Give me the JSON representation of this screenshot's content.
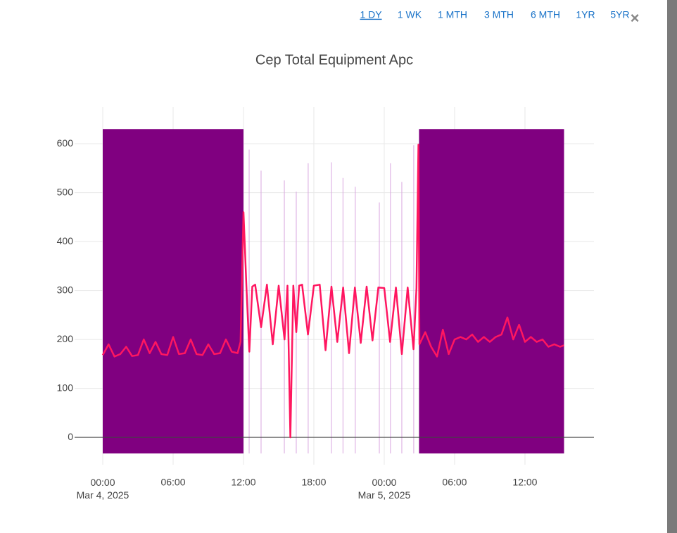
{
  "range_buttons": [
    "1 DY",
    "1 WK",
    "1 MTH",
    "3 MTH",
    "6 MTH",
    "1YR",
    "5YR"
  ],
  "close": "×",
  "chart_data": {
    "type": "line",
    "title": "Cep Total Equipment Apc",
    "color": "#ff1660",
    "grid": true,
    "zeroline": true,
    "xlim": [
      "2025-03-03T21:36",
      "2025-03-05T17:53"
    ],
    "xticks": [
      {
        "value": "2025-03-04T00:00",
        "label": "00:00\nMar 4, 2025"
      },
      {
        "value": "2025-03-04T06:00",
        "label": "06:00"
      },
      {
        "value": "2025-03-04T12:00",
        "label": "12:00"
      },
      {
        "value": "2025-03-04T18:00",
        "label": "18:00"
      },
      {
        "value": "2025-03-05T00:00",
        "label": "00:00\nMar 5, 2025"
      },
      {
        "value": "2025-03-05T06:00",
        "label": "06:00"
      },
      {
        "value": "2025-03-05T12:00",
        "label": "12:00"
      }
    ],
    "ylim": [
      -56,
      675
    ],
    "yticks": [
      0,
      100,
      200,
      300,
      400,
      500,
      600
    ],
    "shaded_regions": [
      {
        "x0": "2025-03-04T00:00",
        "x1": "2025-03-04T12:00",
        "y0": -33,
        "y1": 630,
        "color": "#800080"
      },
      {
        "x0": "2025-03-05T02:58",
        "x1": "2025-03-05T15:20",
        "y0": -33,
        "y1": 630,
        "color": "#800080"
      }
    ],
    "spikes": {
      "color": "#d9a6e0",
      "base": -33,
      "x": [
        "2025-03-04T12:29",
        "2025-03-04T13:30",
        "2025-03-04T15:29",
        "2025-03-04T16:30",
        "2025-03-04T17:31",
        "2025-03-04T19:30",
        "2025-03-04T20:29",
        "2025-03-04T21:32",
        "2025-03-04T23:35",
        "2025-03-05T00:32",
        "2025-03-05T01:30",
        "2025-03-05T02:31"
      ],
      "values": [
        588,
        545,
        525,
        502,
        560,
        562,
        530,
        512,
        480,
        560,
        522,
        597
      ]
    },
    "x": [
      "2025-03-04T00:00",
      "2025-03-04T00:30",
      "2025-03-04T01:00",
      "2025-03-04T01:30",
      "2025-03-04T02:00",
      "2025-03-04T02:30",
      "2025-03-04T03:00",
      "2025-03-04T03:30",
      "2025-03-04T04:00",
      "2025-03-04T04:30",
      "2025-03-04T05:00",
      "2025-03-04T05:30",
      "2025-03-04T06:00",
      "2025-03-04T06:30",
      "2025-03-04T07:00",
      "2025-03-04T07:30",
      "2025-03-04T08:00",
      "2025-03-04T08:30",
      "2025-03-04T09:00",
      "2025-03-04T09:30",
      "2025-03-04T10:00",
      "2025-03-04T10:30",
      "2025-03-04T11:00",
      "2025-03-04T11:30",
      "2025-03-04T11:45",
      "2025-03-04T12:00",
      "2025-03-04T12:15",
      "2025-03-04T12:30",
      "2025-03-04T12:45",
      "2025-03-04T13:00",
      "2025-03-04T13:30",
      "2025-03-04T14:00",
      "2025-03-04T14:30",
      "2025-03-04T15:00",
      "2025-03-04T15:30",
      "2025-03-04T15:45",
      "2025-03-04T16:00",
      "2025-03-04T16:15",
      "2025-03-04T16:30",
      "2025-03-04T16:45",
      "2025-03-04T17:00",
      "2025-03-04T17:30",
      "2025-03-04T18:00",
      "2025-03-04T18:30",
      "2025-03-04T19:00",
      "2025-03-04T19:30",
      "2025-03-04T20:00",
      "2025-03-04T20:30",
      "2025-03-04T21:00",
      "2025-03-04T21:30",
      "2025-03-04T22:00",
      "2025-03-04T22:30",
      "2025-03-04T23:00",
      "2025-03-04T23:30",
      "2025-03-05T00:00",
      "2025-03-05T00:30",
      "2025-03-05T01:00",
      "2025-03-05T01:30",
      "2025-03-05T02:00",
      "2025-03-05T02:30",
      "2025-03-05T02:45",
      "2025-03-05T02:55",
      "2025-03-05T03:00",
      "2025-03-05T03:30",
      "2025-03-05T04:00",
      "2025-03-05T04:30",
      "2025-03-05T05:00",
      "2025-03-05T05:30",
      "2025-03-05T06:00",
      "2025-03-05T06:30",
      "2025-03-05T07:00",
      "2025-03-05T07:30",
      "2025-03-05T08:00",
      "2025-03-05T08:30",
      "2025-03-05T09:00",
      "2025-03-05T09:30",
      "2025-03-05T10:00",
      "2025-03-05T10:30",
      "2025-03-05T11:00",
      "2025-03-05T11:30",
      "2025-03-05T12:00",
      "2025-03-05T12:30",
      "2025-03-05T13:00",
      "2025-03-05T13:30",
      "2025-03-05T14:00",
      "2025-03-05T14:30",
      "2025-03-05T15:00",
      "2025-03-05T15:20"
    ],
    "values": [
      168,
      190,
      165,
      170,
      185,
      166,
      168,
      200,
      172,
      195,
      170,
      168,
      205,
      170,
      172,
      200,
      170,
      168,
      190,
      170,
      172,
      200,
      175,
      172,
      195,
      460,
      310,
      175,
      308,
      312,
      225,
      312,
      190,
      310,
      200,
      310,
      0,
      310,
      215,
      310,
      312,
      210,
      310,
      312,
      178,
      308,
      195,
      306,
      172,
      306,
      193,
      308,
      198,
      306,
      305,
      195,
      306,
      170,
      306,
      180,
      305,
      598,
      190,
      215,
      185,
      165,
      220,
      170,
      200,
      205,
      200,
      210,
      195,
      205,
      195,
      205,
      210,
      245,
      200,
      230,
      195,
      205,
      195,
      200,
      185,
      190,
      185,
      188
    ]
  }
}
